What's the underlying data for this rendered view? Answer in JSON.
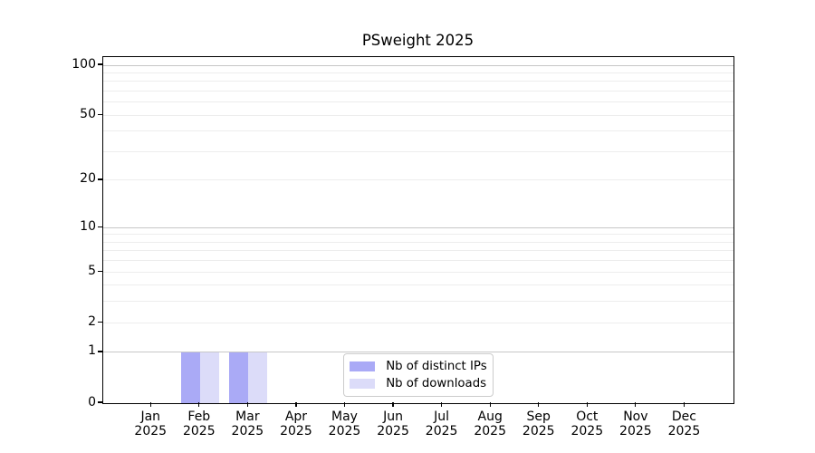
{
  "title": "PSweight 2025",
  "legend": {
    "items": [
      {
        "label": "Nb of distinct IPs",
        "color": "#aaaaf6"
      },
      {
        "label": "Nb of downloads",
        "color": "#dcdcf9"
      }
    ]
  },
  "chart_data": {
    "type": "bar",
    "title": "PSweight 2025",
    "categories": [
      "Jan",
      "Feb",
      "Mar",
      "Apr",
      "May",
      "Jun",
      "Jul",
      "Aug",
      "Sep",
      "Oct",
      "Nov",
      "Dec"
    ],
    "category_year": "2025",
    "series": [
      {
        "name": "Nb of distinct IPs",
        "color": "#aaaaf6",
        "values": [
          0,
          1,
          1,
          0,
          0,
          0,
          0,
          0,
          0,
          0,
          0,
          0
        ]
      },
      {
        "name": "Nb of downloads",
        "color": "#dcdcf9",
        "values": [
          0,
          1,
          1,
          0,
          0,
          0,
          0,
          0,
          0,
          0,
          0,
          0
        ]
      }
    ],
    "xlabel": "",
    "ylabel": "",
    "yscale": "log1p",
    "ylim": [
      0,
      112
    ],
    "y_ticks": [
      0,
      1,
      2,
      5,
      10,
      20,
      50,
      100
    ],
    "grid": true,
    "grid_major_values": [
      1,
      10,
      100
    ],
    "grid_minor_values": [
      2,
      3,
      4,
      5,
      6,
      7,
      8,
      9,
      20,
      30,
      40,
      50,
      60,
      70,
      80,
      90
    ],
    "legend_position": "lower center"
  },
  "colors": {
    "grid_major": "#c7c7c7",
    "grid_minor": "#ededed",
    "axis": "#000000",
    "background": "#ffffff"
  }
}
